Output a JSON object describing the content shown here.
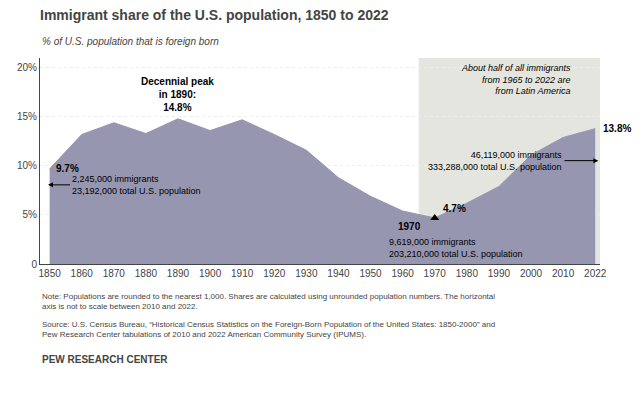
{
  "chart_data": {
    "type": "area",
    "title": "Immigrant share of the U.S. population, 1850 to 2022",
    "subtitle": "% of U.S. population that is foreign born",
    "categories": [
      "1850",
      "1860",
      "1870",
      "1880",
      "1890",
      "1900",
      "1910",
      "1920",
      "1930",
      "1940",
      "1950",
      "1960",
      "1970",
      "1980",
      "1990",
      "2000",
      "2010",
      "2022"
    ],
    "values": [
      9.7,
      13.2,
      14.4,
      13.3,
      14.8,
      13.6,
      14.7,
      13.2,
      11.6,
      8.8,
      6.9,
      5.4,
      4.7,
      6.2,
      7.9,
      11.1,
      12.9,
      13.8
    ],
    "color": "#9696b0",
    "highlight_color": "#e5e5df",
    "ylim": [
      0,
      21
    ],
    "yticks": [
      0,
      {
        "value": 5,
        "label": "5%"
      },
      {
        "value": 10,
        "label": "10%"
      },
      {
        "value": 15,
        "label": "15%"
      },
      {
        "value": 20,
        "label": "20%"
      }
    ],
    "grid": true,
    "annotations": [
      "9.7%",
      "2,245,000 immigrants",
      "23,192,000 total U.S. population",
      "Decennial peak\nin 1890:\n14.8%",
      "4.7%",
      "1970",
      "9,619,000 immigrants\n203,210,000 total U.S. population",
      "46,119,000 immigrants",
      "333,288,000 total U.S. population",
      "13.8%",
      "About half of all immigrants\nfrom 1965 to 2022 are\nfrom Latin America"
    ],
    "note": "Note: Populations are rounded to the nearest 1,000. Shares are calculated using unrounded population numbers. The horizontal axis is not to scale between 2010 and 2022.",
    "source": "Source: U.S. Census Bureau, “Historical Census Statistics on the Foreign-Born Population of the United States: 1850-2000” and Pew Research Center tabulations of 2010 and 2022 American Community Survey (IPUMS).",
    "footer": "PEW RESEARCH CENTER"
  }
}
